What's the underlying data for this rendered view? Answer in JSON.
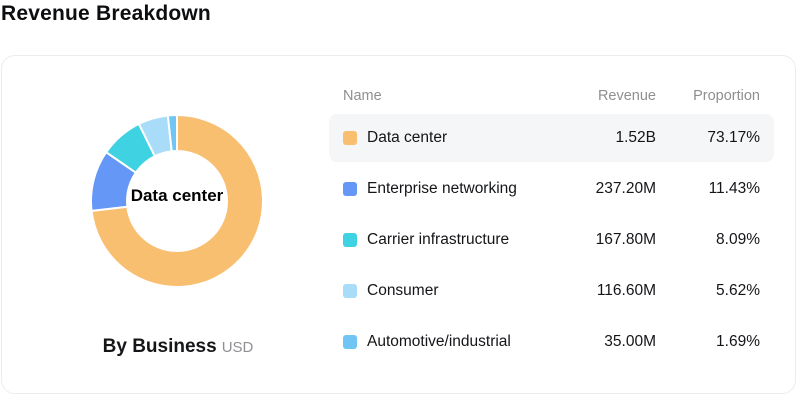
{
  "page": {
    "title": "Revenue Breakdown"
  },
  "chart": {
    "center_label": "Data center",
    "caption": "By Business",
    "unit": "USD"
  },
  "table": {
    "columns": [
      "Name",
      "Revenue",
      "Proportion"
    ],
    "rows": [
      {
        "name": "Data center",
        "revenue": "1.52B",
        "proportion": "73.17%",
        "color": "#f9bf71",
        "highlighted": true
      },
      {
        "name": "Enterprise networking",
        "revenue": "237.20M",
        "proportion": "11.43%",
        "color": "#6597f7",
        "highlighted": false
      },
      {
        "name": "Carrier infrastructure",
        "revenue": "167.80M",
        "proportion": "8.09%",
        "color": "#3ed2e2",
        "highlighted": false
      },
      {
        "name": "Consumer",
        "revenue": "116.60M",
        "proportion": "5.62%",
        "color": "#a8dcf8",
        "highlighted": false
      },
      {
        "name": "Automotive/industrial",
        "revenue": "35.00M",
        "proportion": "1.69%",
        "color": "#70c5f4",
        "highlighted": false
      }
    ]
  },
  "chart_data": {
    "type": "pie",
    "donut": true,
    "title": "Revenue Breakdown",
    "caption": "By Business",
    "unit": "USD",
    "center_label": "Data center",
    "categories": [
      "Data center",
      "Enterprise networking",
      "Carrier infrastructure",
      "Consumer",
      "Automotive/industrial"
    ],
    "values_millions_usd": [
      1520.0,
      237.2,
      167.8,
      116.6,
      35.0
    ],
    "values_display": [
      "1.52B",
      "237.20M",
      "167.80M",
      "116.60M",
      "35.00M"
    ],
    "proportions_pct": [
      73.17,
      11.43,
      8.09,
      5.62,
      1.69
    ],
    "colors": [
      "#f9bf71",
      "#6597f7",
      "#3ed2e2",
      "#a8dcf8",
      "#70c5f4"
    ],
    "start_angle_deg_from_top": 0,
    "direction": "clockwise",
    "legend_position": "table-right",
    "highlighted_slice": "Data center"
  },
  "style": {
    "highlight_row_bg": "#f5f6f7",
    "header_text_color": "#8e8f92",
    "card_border_color": "#ececec"
  }
}
